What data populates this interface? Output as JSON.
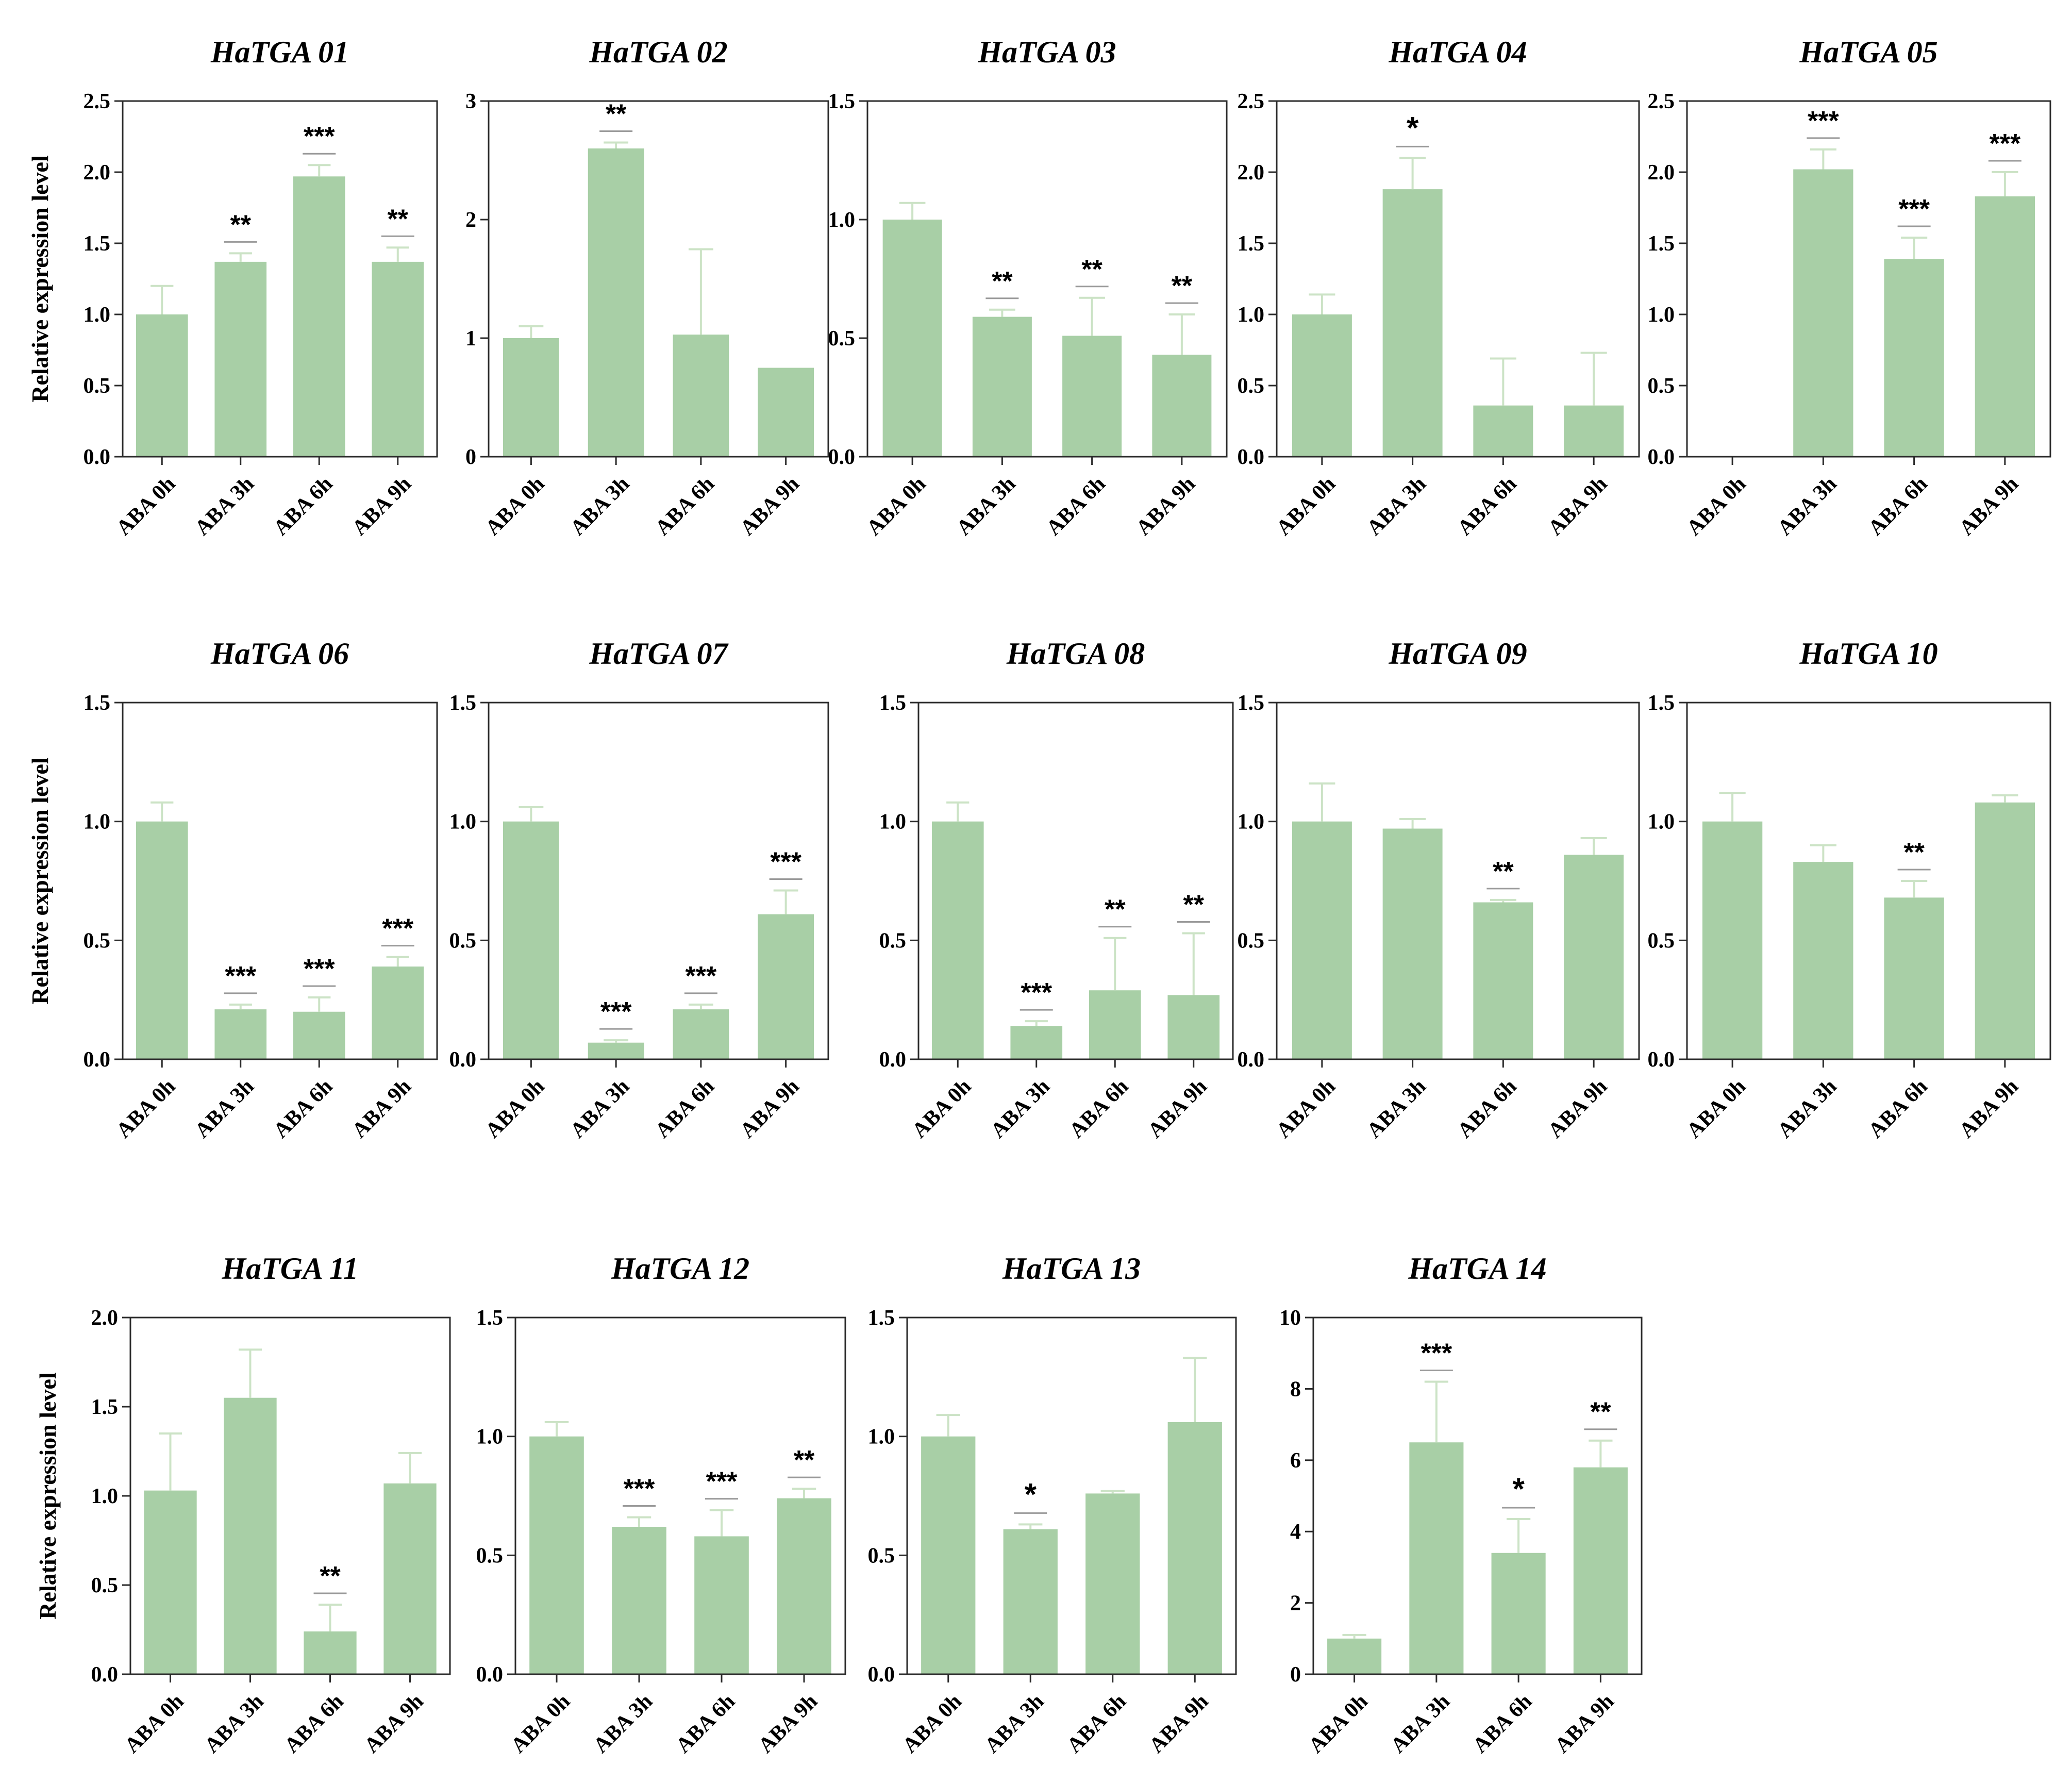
{
  "chart_data": [
    {
      "type": "bar",
      "title": "HaTGA 01",
      "ylabel": "Relative expression level",
      "categories": [
        "ABA 0h",
        "ABA 3h",
        "ABA 6h",
        "ABA 9h"
      ],
      "values": [
        1.0,
        1.37,
        1.97,
        1.37
      ],
      "errors": [
        0.2,
        0.06,
        0.08,
        0.1
      ],
      "significance": [
        "",
        "**",
        "***",
        "**"
      ],
      "ylim": [
        0,
        2.5
      ],
      "yticks": [
        "0.0",
        "0.5",
        "1.0",
        "1.5",
        "2.0",
        "2.5"
      ]
    },
    {
      "type": "bar",
      "title": "HaTGA 02",
      "ylabel": "",
      "categories": [
        "ABA 0h",
        "ABA 3h",
        "ABA 6h",
        "ABA 9h"
      ],
      "values": [
        1.0,
        2.6,
        1.03,
        0.75
      ],
      "errors": [
        0.1,
        0.05,
        0.72,
        0
      ],
      "significance": [
        "",
        "**",
        "",
        ""
      ],
      "ylim": [
        0,
        3
      ],
      "yticks": [
        "0",
        "1",
        "2",
        "3"
      ]
    },
    {
      "type": "bar",
      "title": "HaTGA 03",
      "ylabel": "",
      "categories": [
        "ABA 0h",
        "ABA 3h",
        "ABA 6h",
        "ABA 9h"
      ],
      "values": [
        1.0,
        0.59,
        0.51,
        0.43
      ],
      "errors": [
        0.07,
        0.03,
        0.16,
        0.17
      ],
      "significance": [
        "",
        "**",
        "**",
        "**"
      ],
      "ylim": [
        0,
        1.5
      ],
      "yticks": [
        "0.0",
        "0.5",
        "1.0",
        "1.5"
      ]
    },
    {
      "type": "bar",
      "title": "HaTGA 04",
      "ylabel": "",
      "categories": [
        "ABA 0h",
        "ABA 3h",
        "ABA 6h",
        "ABA 9h"
      ],
      "values": [
        1.0,
        1.88,
        0.36,
        0.36
      ],
      "errors": [
        0.14,
        0.22,
        0.33,
        0.37
      ],
      "significance": [
        "",
        "*",
        "",
        ""
      ],
      "ylim": [
        0,
        2.5
      ],
      "yticks": [
        "0.0",
        "0.5",
        "1.0",
        "1.5",
        "2.0",
        "2.5"
      ]
    },
    {
      "type": "bar",
      "title": "HaTGA 05",
      "ylabel": "",
      "categories": [
        "ABA 0h",
        "ABA 3h",
        "ABA 6h",
        "ABA 9h"
      ],
      "values": [
        0,
        2.02,
        1.39,
        1.83
      ],
      "errors": [
        0,
        0.14,
        0.15,
        0.17
      ],
      "significance": [
        "",
        "***",
        "***",
        "***"
      ],
      "ylim": [
        0,
        2.5
      ],
      "yticks": [
        "0.0",
        "0.5",
        "1.0",
        "1.5",
        "2.0",
        "2.5"
      ]
    },
    {
      "type": "bar",
      "title": "HaTGA 06",
      "ylabel": "Relative expression level",
      "categories": [
        "ABA 0h",
        "ABA 3h",
        "ABA 6h",
        "ABA 9h"
      ],
      "values": [
        1.0,
        0.21,
        0.2,
        0.39
      ],
      "errors": [
        0.08,
        0.02,
        0.06,
        0.04
      ],
      "significance": [
        "",
        "***",
        "***",
        "***"
      ],
      "ylim": [
        0,
        1.5
      ],
      "yticks": [
        "0.0",
        "0.5",
        "1.0",
        "1.5"
      ]
    },
    {
      "type": "bar",
      "title": "HaTGA 07",
      "ylabel": "",
      "categories": [
        "ABA 0h",
        "ABA 3h",
        "ABA 6h",
        "ABA 9h"
      ],
      "values": [
        1.0,
        0.07,
        0.21,
        0.61
      ],
      "errors": [
        0.06,
        0.01,
        0.02,
        0.1
      ],
      "significance": [
        "",
        "***",
        "***",
        "***"
      ],
      "ylim": [
        0,
        1.5
      ],
      "yticks": [
        "0.0",
        "0.5",
        "1.0",
        "1.5"
      ]
    },
    {
      "type": "bar",
      "title": "HaTGA 08",
      "ylabel": "",
      "categories": [
        "ABA 0h",
        "ABA 3h",
        "ABA 6h",
        "ABA 9h"
      ],
      "values": [
        1.0,
        0.14,
        0.29,
        0.27
      ],
      "errors": [
        0.08,
        0.02,
        0.22,
        0.26
      ],
      "significance": [
        "",
        "***",
        "**",
        "**"
      ],
      "ylim": [
        0,
        1.5
      ],
      "yticks": [
        "0.0",
        "0.5",
        "1.0",
        "1.5"
      ]
    },
    {
      "type": "bar",
      "title": "HaTGA 09",
      "ylabel": "",
      "categories": [
        "ABA 0h",
        "ABA 3h",
        "ABA 6h",
        "ABA 9h"
      ],
      "values": [
        1.0,
        0.97,
        0.66,
        0.86
      ],
      "errors": [
        0.16,
        0.04,
        0.01,
        0.07
      ],
      "significance": [
        "",
        "",
        "**",
        ""
      ],
      "ylim": [
        0,
        1.5
      ],
      "yticks": [
        "0.0",
        "0.5",
        "1.0",
        "1.5"
      ]
    },
    {
      "type": "bar",
      "title": "HaTGA 10",
      "ylabel": "",
      "categories": [
        "ABA 0h",
        "ABA 3h",
        "ABA 6h",
        "ABA 9h"
      ],
      "values": [
        1.0,
        0.83,
        0.68,
        1.08
      ],
      "errors": [
        0.12,
        0.07,
        0.07,
        0.03
      ],
      "significance": [
        "",
        "",
        "**",
        ""
      ],
      "ylim": [
        0,
        1.5
      ],
      "yticks": [
        "0.0",
        "0.5",
        "1.0",
        "1.5"
      ]
    },
    {
      "type": "bar",
      "title": "HaTGA 11",
      "ylabel": "Relative expression level",
      "categories": [
        "ABA 0h",
        "ABA 3h",
        "ABA 6h",
        "ABA 9h"
      ],
      "values": [
        1.03,
        1.55,
        0.24,
        1.07
      ],
      "errors": [
        0.32,
        0.27,
        0.15,
        0.17
      ],
      "significance": [
        "",
        "",
        "**",
        ""
      ],
      "ylim": [
        0,
        2.0
      ],
      "yticks": [
        "0.0",
        "0.5",
        "1.0",
        "1.5",
        "2.0"
      ]
    },
    {
      "type": "bar",
      "title": "HaTGA 12",
      "ylabel": "",
      "categories": [
        "ABA 0h",
        "ABA 3h",
        "ABA 6h",
        "ABA 9h"
      ],
      "values": [
        1.0,
        0.62,
        0.58,
        0.74
      ],
      "errors": [
        0.06,
        0.04,
        0.11,
        0.04
      ],
      "significance": [
        "",
        "***",
        "***",
        "**"
      ],
      "ylim": [
        0,
        1.5
      ],
      "yticks": [
        "0.0",
        "0.5",
        "1.0",
        "1.5"
      ]
    },
    {
      "type": "bar",
      "title": "HaTGA 13",
      "ylabel": "",
      "categories": [
        "ABA 0h",
        "ABA 3h",
        "ABA 6h",
        "ABA 9h"
      ],
      "values": [
        1.0,
        0.61,
        0.76,
        1.06
      ],
      "errors": [
        0.09,
        0.02,
        0.01,
        0.27
      ],
      "significance": [
        "",
        "*",
        "",
        ""
      ],
      "ylim": [
        0,
        1.5
      ],
      "yticks": [
        "0.0",
        "0.5",
        "1.0",
        "1.5"
      ]
    },
    {
      "type": "bar",
      "title": "HaTGA 14",
      "ylabel": "",
      "categories": [
        "ABA 0h",
        "ABA 3h",
        "ABA 6h",
        "ABA 9h"
      ],
      "values": [
        1.0,
        6.5,
        3.4,
        5.8
      ],
      "errors": [
        0.1,
        1.7,
        0.95,
        0.75
      ],
      "significance": [
        "",
        "***",
        "*",
        "**"
      ],
      "ylim": [
        0,
        10
      ],
      "yticks": [
        "0",
        "2",
        "4",
        "6",
        "8",
        "10"
      ]
    }
  ],
  "colors": {
    "bar": "#a8cfa6",
    "errorbar": "#cce3c6",
    "axis": "#2a2a2a",
    "sigline": "#9a9a9a"
  }
}
